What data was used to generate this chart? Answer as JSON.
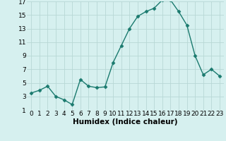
{
  "x": [
    0,
    1,
    2,
    3,
    4,
    5,
    6,
    7,
    8,
    9,
    10,
    11,
    12,
    13,
    14,
    15,
    16,
    17,
    18,
    19,
    20,
    21,
    22,
    23
  ],
  "y": [
    3.5,
    3.9,
    4.5,
    3.0,
    2.5,
    1.8,
    5.5,
    4.5,
    4.3,
    4.4,
    8.0,
    10.5,
    13.0,
    14.8,
    15.5,
    16.0,
    17.2,
    17.2,
    15.5,
    13.5,
    9.0,
    6.2,
    7.0,
    6.0
  ],
  "line_color": "#1a7a6e",
  "marker": "D",
  "marker_size": 2.5,
  "bg_color": "#d6f0ef",
  "grid_color": "#b8d8d5",
  "xlabel": "Humidex (Indice chaleur)",
  "xlim": [
    -0.5,
    23.5
  ],
  "ylim": [
    1,
    17
  ],
  "yticks": [
    1,
    3,
    5,
    7,
    9,
    11,
    13,
    15,
    17
  ],
  "xticks": [
    0,
    1,
    2,
    3,
    4,
    5,
    6,
    7,
    8,
    9,
    10,
    11,
    12,
    13,
    14,
    15,
    16,
    17,
    18,
    19,
    20,
    21,
    22,
    23
  ],
  "xlabel_fontsize": 7.5,
  "tick_fontsize": 6.5,
  "line_width": 1.0
}
